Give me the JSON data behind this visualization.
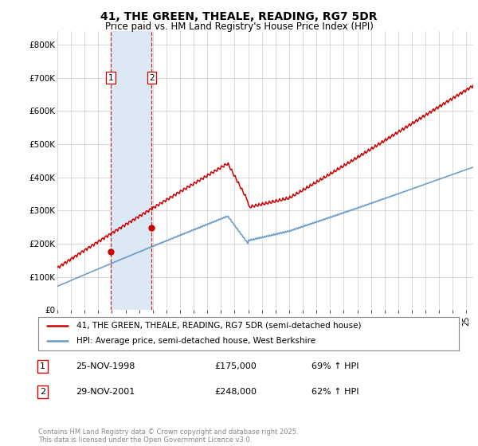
{
  "title_line1": "41, THE GREEN, THEALE, READING, RG7 5DR",
  "title_line2": "Price paid vs. HM Land Registry's House Price Index (HPI)",
  "ylabel_ticks": [
    "£0",
    "£100K",
    "£200K",
    "£300K",
    "£400K",
    "£500K",
    "£600K",
    "£700K",
    "£800K"
  ],
  "ytick_values": [
    0,
    100000,
    200000,
    300000,
    400000,
    500000,
    600000,
    700000,
    800000
  ],
  "ylim": [
    0,
    840000
  ],
  "xlim_start": 1995.0,
  "xlim_end": 2025.5,
  "purchase1_date": 1998.92,
  "purchase1_price": 175000,
  "purchase2_date": 2001.92,
  "purchase2_price": 248000,
  "hpi_line_color": "#6699cc",
  "property_line_color": "#cc0000",
  "purchase_dot_color": "#cc0000",
  "shade_color": "#dce9f5",
  "vline_color": "#cc0000",
  "legend_label1": "41, THE GREEN, THEALE, READING, RG7 5DR (semi-detached house)",
  "legend_label2": "HPI: Average price, semi-detached house, West Berkshire",
  "table_row1": [
    "1",
    "25-NOV-1998",
    "£175,000",
    "69% ↑ HPI"
  ],
  "table_row2": [
    "2",
    "29-NOV-2001",
    "£248,000",
    "62% ↑ HPI"
  ],
  "footnote": "Contains HM Land Registry data © Crown copyright and database right 2025.\nThis data is licensed under the Open Government Licence v3.0.",
  "bg_color": "#ffffff",
  "grid_color": "#cccccc",
  "xtick_years": [
    1995,
    1996,
    1997,
    1998,
    1999,
    2000,
    2001,
    2002,
    2003,
    2004,
    2005,
    2006,
    2007,
    2008,
    2009,
    2010,
    2011,
    2012,
    2013,
    2014,
    2015,
    2016,
    2017,
    2018,
    2019,
    2020,
    2021,
    2022,
    2023,
    2024,
    2025
  ]
}
